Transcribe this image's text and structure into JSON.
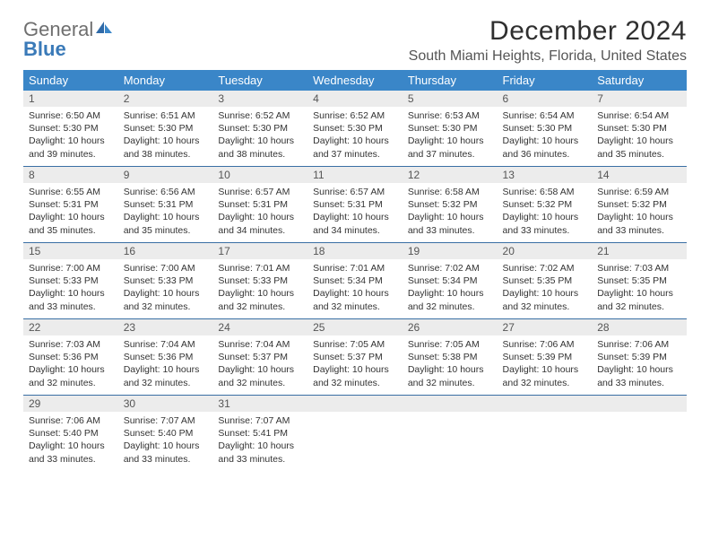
{
  "header": {
    "logo_general": "General",
    "logo_blue": "Blue",
    "month_title": "December 2024",
    "location": "South Miami Heights, Florida, United States"
  },
  "colors": {
    "header_bg": "#3a86c8",
    "row_divider": "#3a6fa4",
    "daynum_bg": "#ececec",
    "logo_gray": "#6f6f6f",
    "logo_blue": "#3a7ab8"
  },
  "weekdays": [
    "Sunday",
    "Monday",
    "Tuesday",
    "Wednesday",
    "Thursday",
    "Friday",
    "Saturday"
  ],
  "days": [
    {
      "n": 1,
      "sunrise": "6:50 AM",
      "sunset": "5:30 PM",
      "day_h": 10,
      "day_m": 39
    },
    {
      "n": 2,
      "sunrise": "6:51 AM",
      "sunset": "5:30 PM",
      "day_h": 10,
      "day_m": 38
    },
    {
      "n": 3,
      "sunrise": "6:52 AM",
      "sunset": "5:30 PM",
      "day_h": 10,
      "day_m": 38
    },
    {
      "n": 4,
      "sunrise": "6:52 AM",
      "sunset": "5:30 PM",
      "day_h": 10,
      "day_m": 37
    },
    {
      "n": 5,
      "sunrise": "6:53 AM",
      "sunset": "5:30 PM",
      "day_h": 10,
      "day_m": 37
    },
    {
      "n": 6,
      "sunrise": "6:54 AM",
      "sunset": "5:30 PM",
      "day_h": 10,
      "day_m": 36
    },
    {
      "n": 7,
      "sunrise": "6:54 AM",
      "sunset": "5:30 PM",
      "day_h": 10,
      "day_m": 35
    },
    {
      "n": 8,
      "sunrise": "6:55 AM",
      "sunset": "5:31 PM",
      "day_h": 10,
      "day_m": 35
    },
    {
      "n": 9,
      "sunrise": "6:56 AM",
      "sunset": "5:31 PM",
      "day_h": 10,
      "day_m": 35
    },
    {
      "n": 10,
      "sunrise": "6:57 AM",
      "sunset": "5:31 PM",
      "day_h": 10,
      "day_m": 34
    },
    {
      "n": 11,
      "sunrise": "6:57 AM",
      "sunset": "5:31 PM",
      "day_h": 10,
      "day_m": 34
    },
    {
      "n": 12,
      "sunrise": "6:58 AM",
      "sunset": "5:32 PM",
      "day_h": 10,
      "day_m": 33
    },
    {
      "n": 13,
      "sunrise": "6:58 AM",
      "sunset": "5:32 PM",
      "day_h": 10,
      "day_m": 33
    },
    {
      "n": 14,
      "sunrise": "6:59 AM",
      "sunset": "5:32 PM",
      "day_h": 10,
      "day_m": 33
    },
    {
      "n": 15,
      "sunrise": "7:00 AM",
      "sunset": "5:33 PM",
      "day_h": 10,
      "day_m": 33
    },
    {
      "n": 16,
      "sunrise": "7:00 AM",
      "sunset": "5:33 PM",
      "day_h": 10,
      "day_m": 32
    },
    {
      "n": 17,
      "sunrise": "7:01 AM",
      "sunset": "5:33 PM",
      "day_h": 10,
      "day_m": 32
    },
    {
      "n": 18,
      "sunrise": "7:01 AM",
      "sunset": "5:34 PM",
      "day_h": 10,
      "day_m": 32
    },
    {
      "n": 19,
      "sunrise": "7:02 AM",
      "sunset": "5:34 PM",
      "day_h": 10,
      "day_m": 32
    },
    {
      "n": 20,
      "sunrise": "7:02 AM",
      "sunset": "5:35 PM",
      "day_h": 10,
      "day_m": 32
    },
    {
      "n": 21,
      "sunrise": "7:03 AM",
      "sunset": "5:35 PM",
      "day_h": 10,
      "day_m": 32
    },
    {
      "n": 22,
      "sunrise": "7:03 AM",
      "sunset": "5:36 PM",
      "day_h": 10,
      "day_m": 32
    },
    {
      "n": 23,
      "sunrise": "7:04 AM",
      "sunset": "5:36 PM",
      "day_h": 10,
      "day_m": 32
    },
    {
      "n": 24,
      "sunrise": "7:04 AM",
      "sunset": "5:37 PM",
      "day_h": 10,
      "day_m": 32
    },
    {
      "n": 25,
      "sunrise": "7:05 AM",
      "sunset": "5:37 PM",
      "day_h": 10,
      "day_m": 32
    },
    {
      "n": 26,
      "sunrise": "7:05 AM",
      "sunset": "5:38 PM",
      "day_h": 10,
      "day_m": 32
    },
    {
      "n": 27,
      "sunrise": "7:06 AM",
      "sunset": "5:39 PM",
      "day_h": 10,
      "day_m": 32
    },
    {
      "n": 28,
      "sunrise": "7:06 AM",
      "sunset": "5:39 PM",
      "day_h": 10,
      "day_m": 33
    },
    {
      "n": 29,
      "sunrise": "7:06 AM",
      "sunset": "5:40 PM",
      "day_h": 10,
      "day_m": 33
    },
    {
      "n": 30,
      "sunrise": "7:07 AM",
      "sunset": "5:40 PM",
      "day_h": 10,
      "day_m": 33
    },
    {
      "n": 31,
      "sunrise": "7:07 AM",
      "sunset": "5:41 PM",
      "day_h": 10,
      "day_m": 33
    }
  ],
  "layout": {
    "first_weekday_index": 0,
    "trailing_blanks": 4
  }
}
